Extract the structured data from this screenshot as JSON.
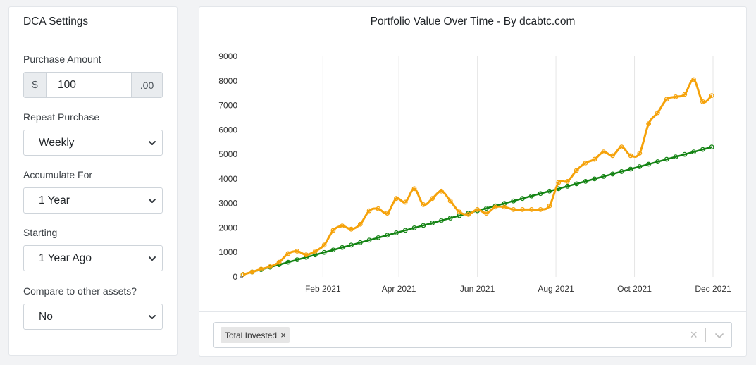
{
  "settings": {
    "title": "DCA Settings",
    "purchase_amount": {
      "label": "Purchase Amount",
      "prefix": "$",
      "value": "100",
      "suffix": ".00"
    },
    "repeat": {
      "label": "Repeat Purchase",
      "value": "Weekly"
    },
    "accumulate": {
      "label": "Accumulate For",
      "value": "1 Year"
    },
    "starting": {
      "label": "Starting",
      "value": "1 Year Ago"
    },
    "compare": {
      "label": "Compare to other assets?",
      "value": "No"
    }
  },
  "chart_card": {
    "title": "Portfolio Value Over Time - By dcabtc.com",
    "filter": {
      "tags": [
        "Total Invested"
      ],
      "remove_symbol": "×",
      "clear_symbol": "×"
    }
  },
  "chart_data": {
    "type": "line",
    "title": "Portfolio Value Over Time - By dcabtc.com",
    "x_type": "date",
    "xlim": [
      "2020-12-01",
      "2021-12-01"
    ],
    "ylim": [
      0,
      9000
    ],
    "y_ticks": [
      0,
      1000,
      2000,
      3000,
      4000,
      5000,
      6000,
      7000,
      8000,
      9000
    ],
    "x_ticks": [
      {
        "date": "2021-02-01",
        "label": "Feb 2021"
      },
      {
        "date": "2021-04-01",
        "label": "Apr 2021"
      },
      {
        "date": "2021-06-01",
        "label": "Jun 2021"
      },
      {
        "date": "2021-08-01",
        "label": "Aug 2021"
      },
      {
        "date": "2021-10-01",
        "label": "Oct 2021"
      },
      {
        "date": "2021-12-01",
        "label": "Dec 2021"
      }
    ],
    "grid": "vertical",
    "legend": "none",
    "series": [
      {
        "color": "#f5a20a",
        "points": [
          [
            "2020-12-01",
            100
          ],
          [
            "2020-12-08",
            200
          ],
          [
            "2020-12-15",
            320
          ],
          [
            "2020-12-22",
            420
          ],
          [
            "2020-12-29",
            600
          ],
          [
            "2021-01-05",
            950
          ],
          [
            "2021-01-12",
            1050
          ],
          [
            "2021-01-19",
            900
          ],
          [
            "2021-01-26",
            1050
          ],
          [
            "2021-02-02",
            1300
          ],
          [
            "2021-02-09",
            1900
          ],
          [
            "2021-02-16",
            2080
          ],
          [
            "2021-02-23",
            1950
          ],
          [
            "2021-03-02",
            2150
          ],
          [
            "2021-03-09",
            2700
          ],
          [
            "2021-03-16",
            2780
          ],
          [
            "2021-03-23",
            2600
          ],
          [
            "2021-03-30",
            3200
          ],
          [
            "2021-04-06",
            3050
          ],
          [
            "2021-04-13",
            3600
          ],
          [
            "2021-04-20",
            2950
          ],
          [
            "2021-04-27",
            3200
          ],
          [
            "2021-05-04",
            3500
          ],
          [
            "2021-05-11",
            3100
          ],
          [
            "2021-05-18",
            2650
          ],
          [
            "2021-05-25",
            2550
          ],
          [
            "2021-06-01",
            2750
          ],
          [
            "2021-06-08",
            2600
          ],
          [
            "2021-06-15",
            2850
          ],
          [
            "2021-06-22",
            2850
          ],
          [
            "2021-06-29",
            2750
          ],
          [
            "2021-07-06",
            2750
          ],
          [
            "2021-07-13",
            2750
          ],
          [
            "2021-07-20",
            2750
          ],
          [
            "2021-07-27",
            2900
          ],
          [
            "2021-08-03",
            3850
          ],
          [
            "2021-08-10",
            3900
          ],
          [
            "2021-08-17",
            4350
          ],
          [
            "2021-08-24",
            4650
          ],
          [
            "2021-08-31",
            4800
          ],
          [
            "2021-09-07",
            5100
          ],
          [
            "2021-09-14",
            4950
          ],
          [
            "2021-09-21",
            5300
          ],
          [
            "2021-09-28",
            4950
          ],
          [
            "2021-10-05",
            5050
          ],
          [
            "2021-10-12",
            6250
          ],
          [
            "2021-10-19",
            6700
          ],
          [
            "2021-10-26",
            7250
          ],
          [
            "2021-11-02",
            7350
          ],
          [
            "2021-11-09",
            7450
          ],
          [
            "2021-11-16",
            8050
          ],
          [
            "2021-11-23",
            7150
          ],
          [
            "2021-11-30",
            7400
          ]
        ]
      },
      {
        "name": "Total Invested",
        "color": "#138313",
        "start": [
          "2020-12-01",
          100
        ],
        "step_days": 7,
        "step_value": 100,
        "count": 53
      }
    ]
  },
  "colors": {
    "orange_line": "#f5a20a",
    "green_line": "#138313",
    "grid": "#e6e6e6",
    "axis_text": "#333333"
  }
}
